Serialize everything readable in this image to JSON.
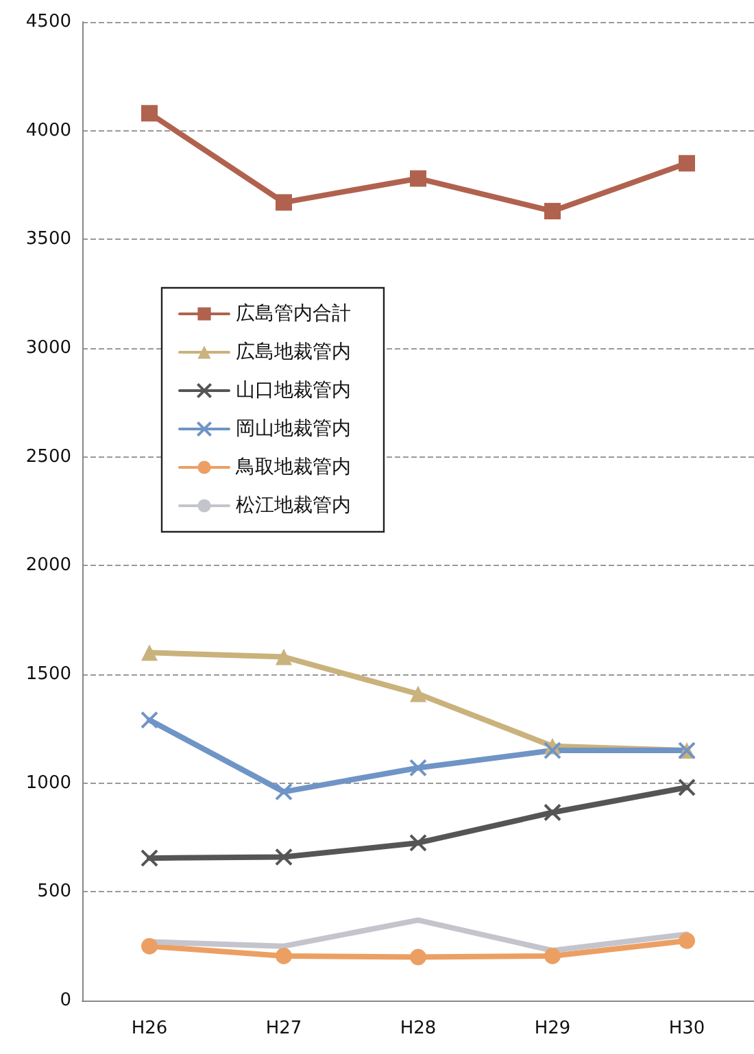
{
  "chart_data": {
    "type": "line",
    "categories": [
      "H26",
      "H27",
      "H28",
      "H29",
      "H30"
    ],
    "series": [
      {
        "name": "広島管内合計",
        "color": "#b0624e",
        "marker": "square",
        "values": [
          4080,
          3670,
          3780,
          3630,
          3850
        ]
      },
      {
        "name": "広島地裁管内",
        "color": "#c9b27c",
        "marker": "triangle",
        "values": [
          1600,
          1580,
          1410,
          1170,
          1150
        ]
      },
      {
        "name": "山口地裁管内",
        "color": "#555555",
        "marker": "cross",
        "values": [
          655,
          660,
          725,
          865,
          980
        ]
      },
      {
        "name": "岡山地裁管内",
        "color": "#6f94c6",
        "marker": "cross",
        "values": [
          1290,
          960,
          1070,
          1150,
          1150
        ]
      },
      {
        "name": "鳥取地裁管内",
        "color": "#ec9f62",
        "marker": "circle",
        "values": [
          250,
          205,
          200,
          205,
          275
        ]
      },
      {
        "name": "松江地裁管内",
        "color": "#c4c4cc",
        "marker": "none",
        "values": [
          270,
          250,
          370,
          230,
          305
        ]
      }
    ],
    "ylim": [
      0,
      4500
    ],
    "yticks": [
      0,
      500,
      1000,
      1500,
      2000,
      2500,
      3000,
      3500,
      4000,
      4500
    ],
    "grid": "y",
    "legend": "left",
    "line_style": "solid"
  }
}
